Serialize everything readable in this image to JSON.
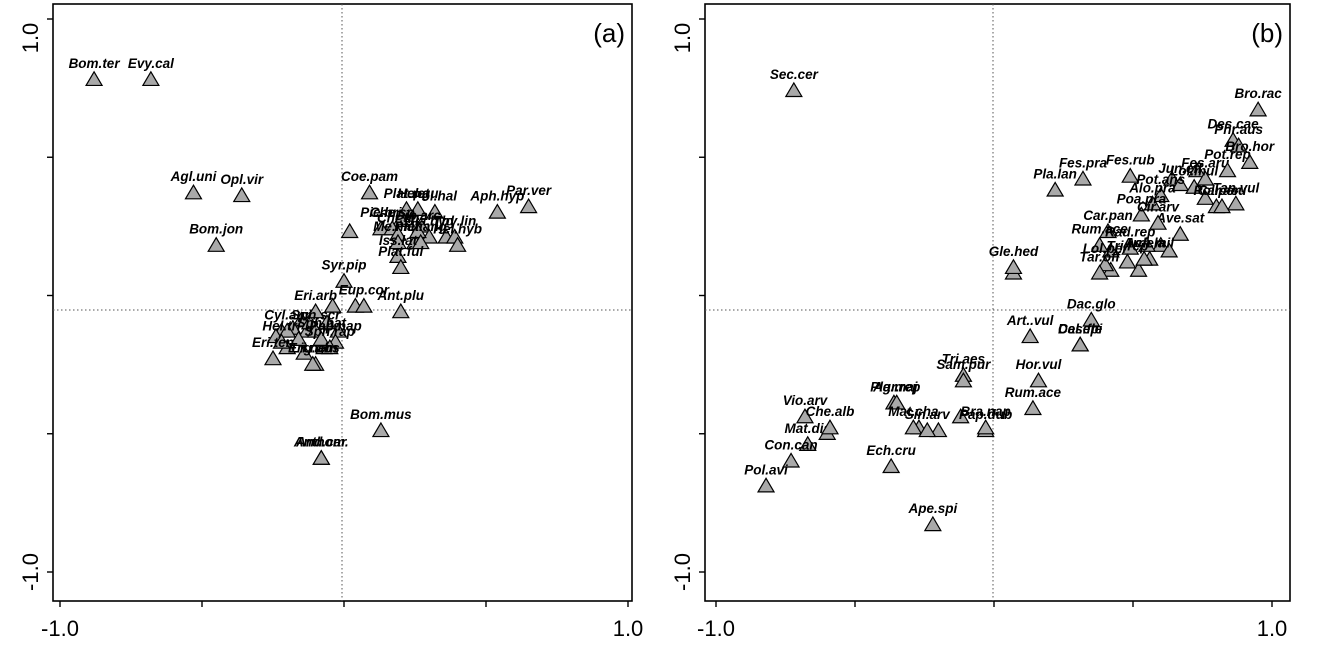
{
  "chart_data": [
    {
      "type": "scatter",
      "panel_label": "(a)",
      "xlim": [
        -1.0,
        1.0
      ],
      "ylim": [
        -1.0,
        1.0
      ],
      "xticks": [
        -1.0,
        1.0
      ],
      "yticks": [
        -1.0,
        1.0
      ],
      "tick_labels": {
        "x_min": "-1.0",
        "x_max": "1.0",
        "y_min": "-1.0",
        "y_max": "1.0"
      },
      "minor_ticks": [
        -0.5,
        0.5
      ],
      "reference_lines": {
        "x": 0,
        "y": 0
      },
      "grid": false,
      "marker": "triangle",
      "marker_color": "#a9a9a9",
      "points": [
        {
          "label": "Bom.ter",
          "x": -0.88,
          "y": 0.78
        },
        {
          "label": "Evy.cal",
          "x": -0.68,
          "y": 0.78
        },
        {
          "label": "Agl.uni",
          "x": -0.53,
          "y": 0.37
        },
        {
          "label": "Opl.vir",
          "x": -0.36,
          "y": 0.36
        },
        {
          "label": "Bom.jon",
          "x": -0.45,
          "y": 0.18
        },
        {
          "label": "Coe.pam",
          "x": 0.09,
          "y": 0.37
        },
        {
          "label": "Plat.ret",
          "x": 0.22,
          "y": 0.31
        },
        {
          "label": "Hel.gu",
          "x": 0.26,
          "y": 0.31
        },
        {
          "label": "Pol.hal",
          "x": 0.32,
          "y": 0.3
        },
        {
          "label": "Par.ver",
          "x": 0.65,
          "y": 0.32
        },
        {
          "label": "Aph.hyp",
          "x": 0.54,
          "y": 0.3
        },
        {
          "label": "Pie.bri",
          "x": 0.13,
          "y": 0.24
        },
        {
          "label": "Che.sp",
          "x": 0.17,
          "y": 0.24
        },
        {
          "label": "Chr.sp",
          "x": 0.19,
          "y": 0.22
        },
        {
          "label": "Gla.hyd",
          "x": 0.3,
          "y": 0.21
        },
        {
          "label": "Dip.arc",
          "x": 0.26,
          "y": 0.23
        },
        {
          "label": "Plat.ang",
          "x": 0.27,
          "y": 0.19
        },
        {
          "label": "Me.meli",
          "x": 0.19,
          "y": 0.19
        },
        {
          "label": "Thy.lin",
          "x": 0.39,
          "y": 0.21
        },
        {
          "label": "Hel.hyb",
          "x": 0.4,
          "y": 0.18
        },
        {
          "label": "Iss.lat",
          "x": 0.19,
          "y": 0.14
        },
        {
          "label": "Plat.ful",
          "x": 0.2,
          "y": 0.1
        },
        {
          "label": "Syr.pip",
          "x": 0.0,
          "y": 0.05
        },
        {
          "label": "Eup.cor",
          "x": 0.07,
          "y": -0.04
        },
        {
          "label": "Ant.plu",
          "x": 0.2,
          "y": -0.06
        },
        {
          "label": "Eri.arb",
          "x": -0.1,
          "y": -0.06
        },
        {
          "label": "Cyl.aur",
          "x": -0.2,
          "y": -0.13
        },
        {
          "label": "Sph.scr",
          "x": -0.1,
          "y": -0.13
        },
        {
          "label": "Sph.bat",
          "x": -0.08,
          "y": -0.16
        },
        {
          "label": "Pap.nap",
          "x": -0.03,
          "y": -0.17
        },
        {
          "label": "Hel.tri",
          "x": -0.22,
          "y": -0.17
        },
        {
          "label": "Sph.rap",
          "x": -0.05,
          "y": -0.19
        },
        {
          "label": "Lig.obs",
          "x": -0.1,
          "y": -0.25
        },
        {
          "label": "Eri.ten",
          "x": -0.25,
          "y": -0.23
        },
        {
          "label": "Eri.nem",
          "x": -0.11,
          "y": -0.25
        },
        {
          "label": "Bom.mus",
          "x": 0.13,
          "y": -0.49
        },
        {
          "label": "And.car",
          "x": -0.08,
          "y": -0.59
        },
        {
          "label": "Anthom.",
          "x": -0.08,
          "y": -0.59
        }
      ],
      "unlabeled_points": [
        {
          "x": -0.15,
          "y": -0.09
        },
        {
          "x": -0.22,
          "y": -0.13
        },
        {
          "x": -0.18,
          "y": -0.12
        },
        {
          "x": -0.13,
          "y": -0.13
        },
        {
          "x": -0.16,
          "y": -0.16
        },
        {
          "x": -0.2,
          "y": -0.19
        },
        {
          "x": -0.24,
          "y": -0.15
        },
        {
          "x": -0.12,
          "y": -0.1
        },
        {
          "x": -0.06,
          "y": -0.1
        },
        {
          "x": -0.02,
          "y": -0.13
        },
        {
          "x": -0.04,
          "y": -0.04
        },
        {
          "x": 0.04,
          "y": -0.04
        },
        {
          "x": -0.07,
          "y": -0.19
        },
        {
          "x": -0.14,
          "y": -0.21
        },
        {
          "x": 0.02,
          "y": 0.23
        },
        {
          "x": 0.2,
          "y": 0.27
        },
        {
          "x": 0.36,
          "y": 0.21
        },
        {
          "x": 0.27,
          "y": 0.25
        },
        {
          "x": 0.25,
          "y": 0.19
        }
      ]
    },
    {
      "type": "scatter",
      "panel_label": "(b)",
      "xlim": [
        -1.0,
        1.0
      ],
      "ylim": [
        -1.0,
        1.0
      ],
      "xticks": [
        -1.0,
        1.0
      ],
      "yticks": [
        -1.0,
        1.0
      ],
      "tick_labels": {
        "x_min": "-1.0",
        "x_max": "1.0",
        "y_min": "-1.0",
        "y_max": "1.0"
      },
      "minor_ticks": [
        -0.5,
        0.5
      ],
      "reference_lines": {
        "x": 0,
        "y": 0
      },
      "grid": false,
      "marker": "triangle",
      "marker_color": "#a9a9a9",
      "points": [
        {
          "label": "Sec.cer",
          "x": -0.72,
          "y": 0.74
        },
        {
          "label": "Bro.rac",
          "x": 0.95,
          "y": 0.67
        },
        {
          "label": "Des.cae",
          "x": 0.86,
          "y": 0.56
        },
        {
          "label": "Phr.aus",
          "x": 0.88,
          "y": 0.54
        },
        {
          "label": "Bro.hor",
          "x": 0.92,
          "y": 0.48
        },
        {
          "label": "Fes.pra",
          "x": 0.32,
          "y": 0.42
        },
        {
          "label": "Pla.lan",
          "x": 0.22,
          "y": 0.38
        },
        {
          "label": "Fes.rub",
          "x": 0.49,
          "y": 0.43
        },
        {
          "label": "Jun.eff",
          "x": 0.67,
          "y": 0.4
        },
        {
          "label": "Fes.aru",
          "x": 0.76,
          "y": 0.42
        },
        {
          "label": "Pot.rep",
          "x": 0.84,
          "y": 0.45
        },
        {
          "label": "Lol.mul",
          "x": 0.72,
          "y": 0.39
        },
        {
          "label": "Pot.ans",
          "x": 0.6,
          "y": 0.36
        },
        {
          "label": "Pol.per",
          "x": 0.8,
          "y": 0.32
        },
        {
          "label": "Tan.vul",
          "x": 0.87,
          "y": 0.33
        },
        {
          "label": "Alo.pra",
          "x": 0.57,
          "y": 0.33
        },
        {
          "label": "Poa.pra",
          "x": 0.53,
          "y": 0.29
        },
        {
          "label": "Car.pan",
          "x": 0.41,
          "y": 0.23
        },
        {
          "label": "Ave.sat",
          "x": 0.67,
          "y": 0.22
        },
        {
          "label": "Car.acu",
          "x": 0.82,
          "y": 0.32
        },
        {
          "label": "Cir.arv",
          "x": 0.59,
          "y": 0.26
        },
        {
          "label": "Gle.hed",
          "x": 0.07,
          "y": 0.1
        },
        {
          "label": "Rad.rep",
          "x": 0.49,
          "y": 0.17
        },
        {
          "label": "Ach.mil",
          "x": 0.56,
          "y": 0.13
        },
        {
          "label": "Rum.ace",
          "x": 0.38,
          "y": 0.18
        },
        {
          "label": "Tri.rep",
          "x": 0.48,
          "y": 0.12
        },
        {
          "label": "Lol.per",
          "x": 0.4,
          "y": 0.11
        },
        {
          "label": "Arr.ela",
          "x": 0.54,
          "y": 0.13
        },
        {
          "label": "Tar.off",
          "x": 0.38,
          "y": 0.08
        },
        {
          "label": "Dac.glo",
          "x": 0.35,
          "y": -0.09
        },
        {
          "label": "Des.fle",
          "x": 0.31,
          "y": -0.18
        },
        {
          "label": "Cal.epi",
          "x": 0.31,
          "y": -0.18
        },
        {
          "label": "Tri.aes",
          "x": -0.11,
          "y": -0.29
        },
        {
          "label": "Art..vul",
          "x": 0.13,
          "y": -0.15
        },
        {
          "label": "Sam.pur",
          "x": -0.11,
          "y": -0.31
        },
        {
          "label": "Hor.vul",
          "x": 0.16,
          "y": -0.31
        },
        {
          "label": "Pla.maj",
          "x": -0.36,
          "y": -0.39
        },
        {
          "label": "Agr.rep",
          "x": -0.35,
          "y": -0.39
        },
        {
          "label": "Mat.cha",
          "x": -0.29,
          "y": -0.48
        },
        {
          "label": "Sin.arv",
          "x": -0.24,
          "y": -0.49
        },
        {
          "label": "Rum.ace",
          "x": 0.14,
          "y": -0.41
        },
        {
          "label": "Vio.arv",
          "x": -0.68,
          "y": -0.44
        },
        {
          "label": "Mat.dis",
          "x": -0.67,
          "y": -0.54
        },
        {
          "label": "Che.alb",
          "x": -0.59,
          "y": -0.48
        },
        {
          "label": "Pap.dub",
          "x": -0.03,
          "y": -0.49
        },
        {
          "label": "Bra.nap",
          "x": -0.03,
          "y": -0.48
        },
        {
          "label": "Con.can",
          "x": -0.73,
          "y": -0.6
        },
        {
          "label": "Ech.cru",
          "x": -0.37,
          "y": -0.62
        },
        {
          "label": "Pol.avi",
          "x": -0.82,
          "y": -0.69
        },
        {
          "label": "Ape.spi",
          "x": -0.22,
          "y": -0.83
        }
      ],
      "unlabeled_points": [
        {
          "x": 0.64,
          "y": 0.42
        },
        {
          "x": 0.73,
          "y": 0.45
        },
        {
          "x": 0.76,
          "y": 0.35
        },
        {
          "x": 0.6,
          "y": 0.18
        },
        {
          "x": 0.55,
          "y": 0.18
        },
        {
          "x": 0.42,
          "y": 0.16
        },
        {
          "x": 0.63,
          "y": 0.16
        },
        {
          "x": 0.52,
          "y": 0.09
        },
        {
          "x": 0.07,
          "y": 0.08
        },
        {
          "x": 0.42,
          "y": 0.09
        },
        {
          "x": -0.6,
          "y": -0.5
        },
        {
          "x": -0.12,
          "y": -0.44
        },
        {
          "x": -0.27,
          "y": -0.48
        },
        {
          "x": -0.2,
          "y": -0.49
        }
      ]
    }
  ]
}
